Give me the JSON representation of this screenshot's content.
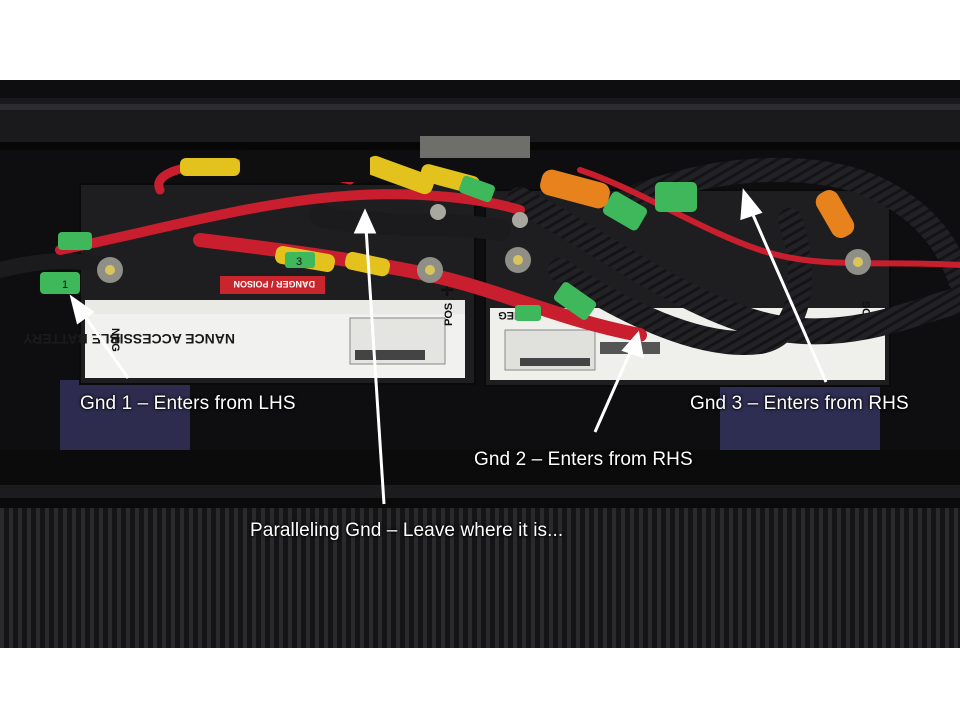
{
  "annotations": {
    "gnd1": "Gnd 1 – Enters from LHS",
    "gnd2": "Gnd 2 – Enters from RHS",
    "gnd3": "Gnd 3 – Enters from RHS",
    "paralleling": "Paralleling Gnd – Leave where it is..."
  },
  "battery_labels": {
    "left_title": "NANCE ACCESSIBLE BATTERY",
    "neg": "NEG",
    "pos": "POS",
    "danger": "DANGER / POISON",
    "tag_left": "1",
    "tag_mid": "3"
  },
  "colors": {
    "photo_background": "#0d0d0f",
    "red_cable": "#c81e2d",
    "black_cable": "#1b1b1d",
    "yellow_sleeve": "#e3c21e",
    "green_tag": "#3fb85c",
    "orange_lug": "#e8821c",
    "annotation_text": "#ffffff"
  }
}
